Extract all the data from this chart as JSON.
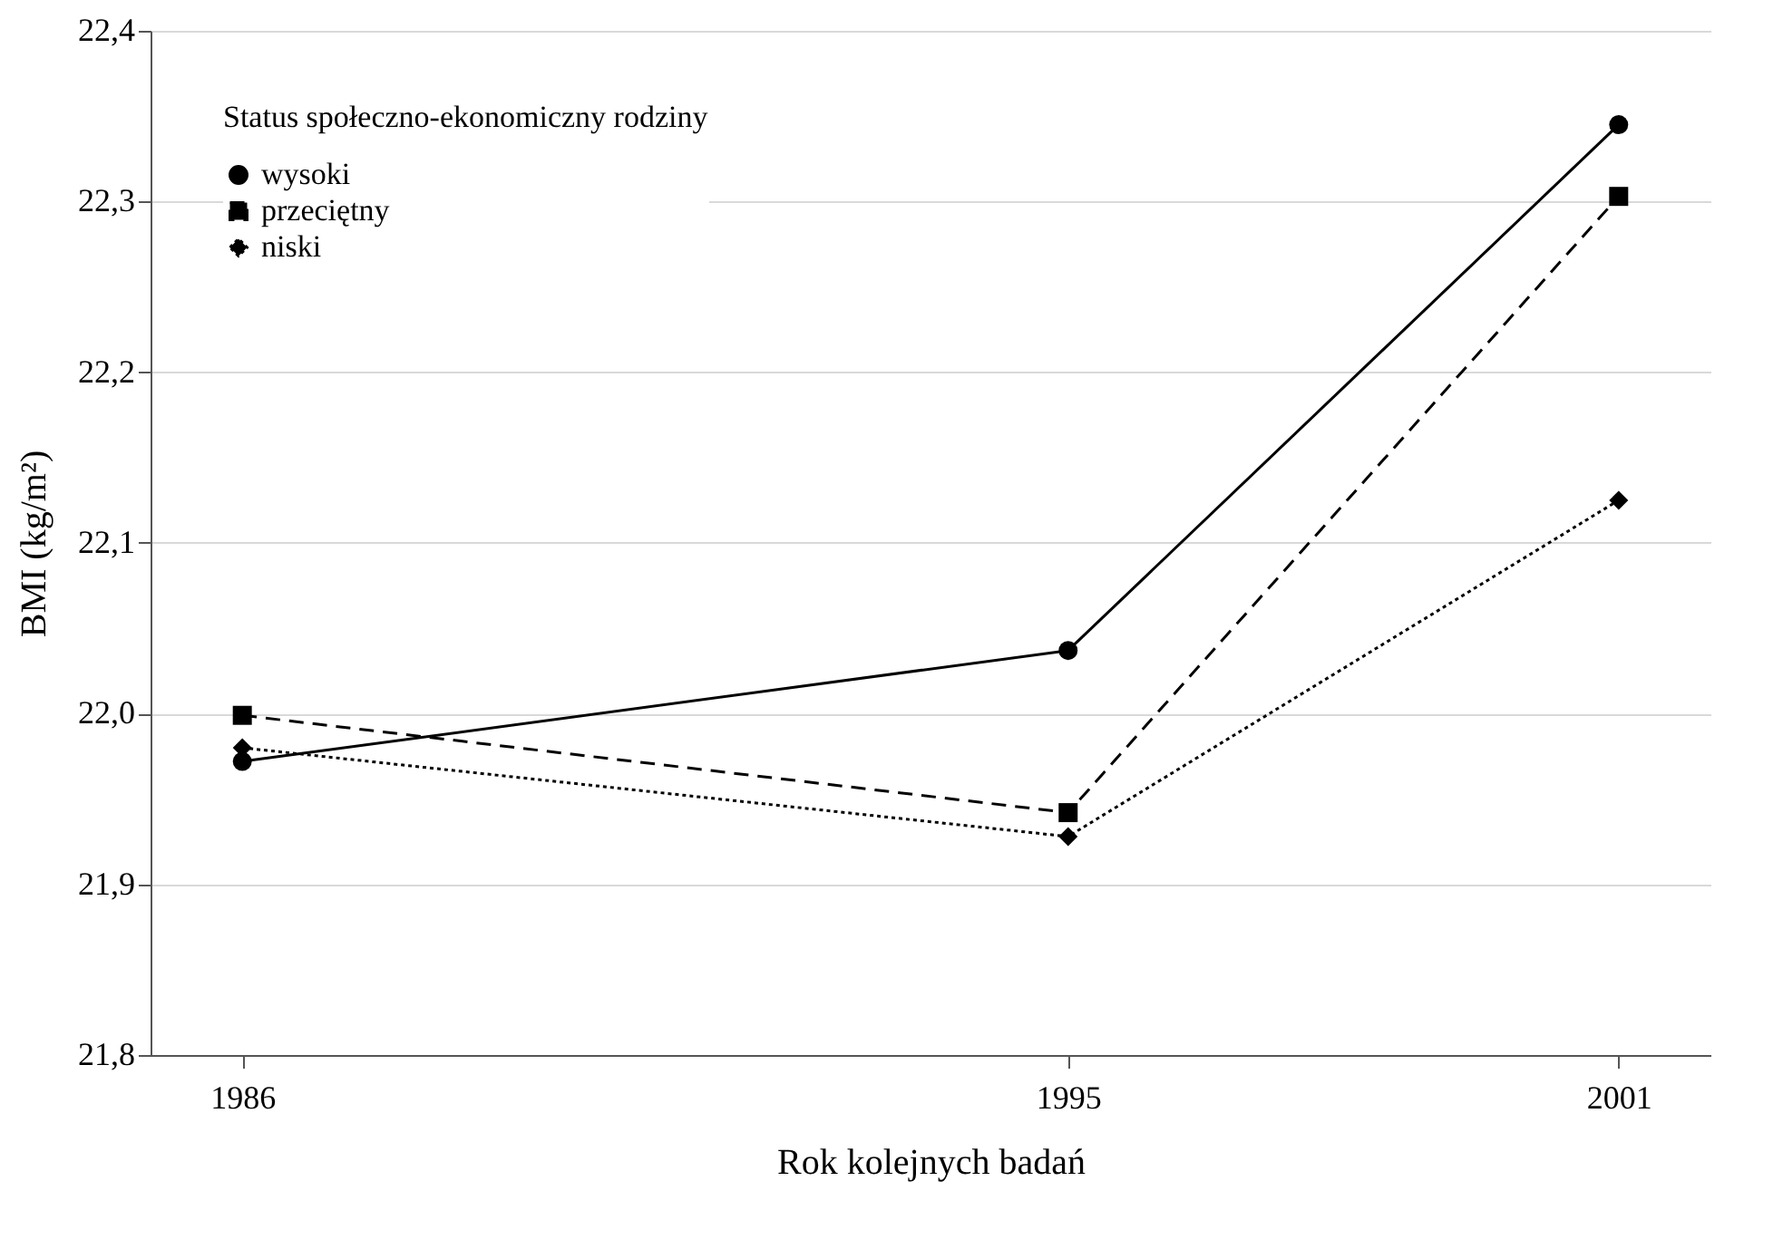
{
  "chart_data": {
    "type": "line",
    "xlabel": "Rok kolejnych badań",
    "ylabel": "BMI (kg/m²)",
    "legend_title": "Status społeczno-ekonomiczny rodziny",
    "x": [
      1986,
      1995,
      2001
    ],
    "xlim": [
      1985,
      2002
    ],
    "xticks": [
      1986,
      1995,
      2001
    ],
    "ylim": [
      21.8,
      22.4
    ],
    "yticks": [
      {
        "value": 21.8,
        "label": "21,8"
      },
      {
        "value": 21.9,
        "label": "21,9"
      },
      {
        "value": 22.0,
        "label": "22,0"
      },
      {
        "value": 22.1,
        "label": "22,1"
      },
      {
        "value": 22.2,
        "label": "22,2"
      },
      {
        "value": 22.3,
        "label": "22,3"
      },
      {
        "value": 22.4,
        "label": "22,4"
      }
    ],
    "grid": "y",
    "legend": "top left",
    "series": [
      {
        "name": "wysoki",
        "color": "#000000",
        "marker": "circle",
        "line_style": "solid",
        "values": [
          21.972,
          22.037,
          22.345
        ]
      },
      {
        "name": "przeciętny",
        "color": "#000000",
        "marker": "square",
        "line_style": "dashed",
        "values": [
          21.999,
          21.942,
          22.303
        ]
      },
      {
        "name": "niski",
        "color": "#000000",
        "marker": "diamond",
        "line_style": "dotted",
        "values": [
          21.98,
          21.928,
          22.125
        ]
      }
    ]
  }
}
